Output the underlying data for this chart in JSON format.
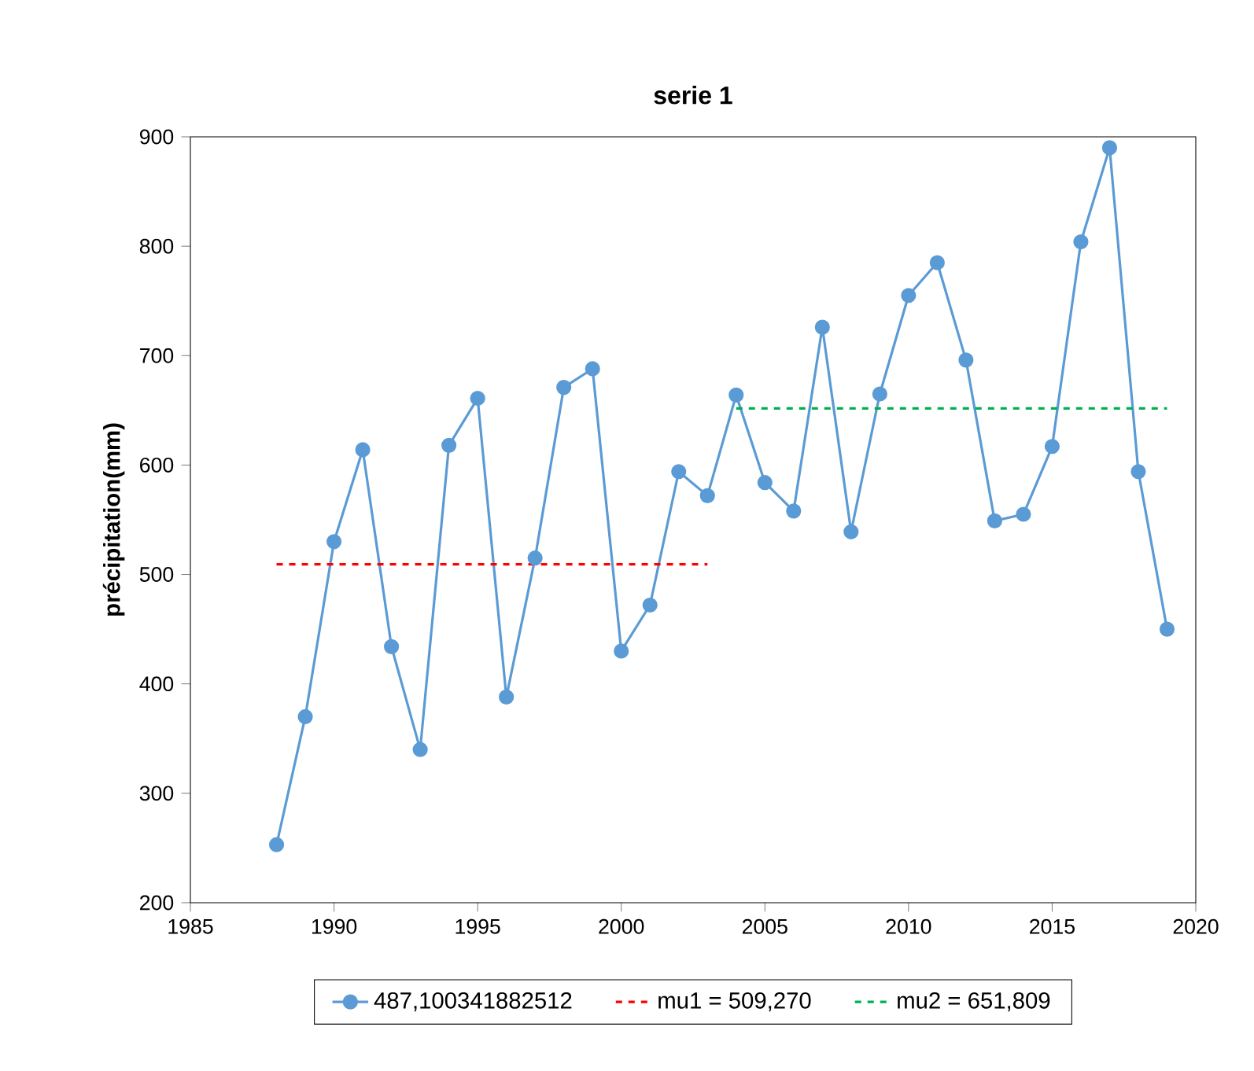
{
  "chart_data": {
    "type": "line",
    "title": "serie 1",
    "ylabel": "précipitation(mm)",
    "xlim": [
      1985,
      2020
    ],
    "xticks": [
      1985,
      1990,
      1995,
      2000,
      2005,
      2010,
      2015,
      2020
    ],
    "ylim": [
      200,
      900
    ],
    "yticks": [
      200,
      300,
      400,
      500,
      600,
      700,
      800,
      900
    ],
    "grid": false,
    "legend": "bottom",
    "marker": "circle",
    "line_style": "solid",
    "series": [
      {
        "name": "487,100341882512",
        "color": "#5b9bd5",
        "x": [
          1988,
          1989,
          1990,
          1991,
          1992,
          1993,
          1994,
          1995,
          1996,
          1997,
          1998,
          1999,
          2000,
          2001,
          2002,
          2003,
          2004,
          2005,
          2006,
          2007,
          2008,
          2009,
          2010,
          2011,
          2012,
          2013,
          2014,
          2015,
          2016,
          2017,
          2018,
          2019
        ],
        "values": [
          253,
          370,
          530,
          614,
          434,
          340,
          618,
          661,
          388,
          515,
          671,
          688,
          430,
          472,
          594,
          572,
          664,
          584,
          558,
          726,
          539,
          665,
          755,
          785,
          696,
          549,
          555,
          617,
          804,
          890,
          594,
          450
        ]
      },
      {
        "name": "mu1 = 509,270",
        "color": "#ff0000",
        "marker": "none",
        "line_style": "dashed",
        "x": [
          1988,
          2003
        ],
        "values": [
          509.27,
          509.27
        ]
      },
      {
        "name": "mu2 = 651,809",
        "color": "#00b050",
        "marker": "none",
        "line_style": "dashed",
        "x": [
          2004,
          2019
        ],
        "values": [
          651.809,
          651.809
        ]
      }
    ]
  }
}
